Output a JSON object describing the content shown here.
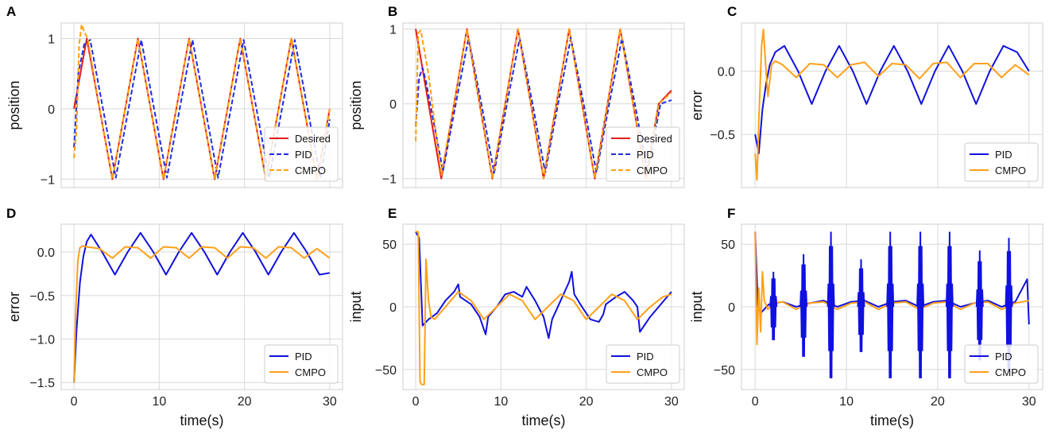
{
  "chart_data": [
    {
      "panel": "A",
      "type": "line",
      "xlabel": "",
      "ylabel": "position",
      "xlim": [
        -1.5,
        31.5
      ],
      "ylim": [
        -1.12,
        1.22
      ],
      "xticks": [
        0,
        10,
        20,
        30
      ],
      "yticks": [
        -1,
        0,
        1
      ],
      "xtick_labels": [],
      "ytick_labels": [
        "−1",
        "0",
        "1"
      ],
      "legend": "lower-right",
      "grid": true,
      "series": [
        {
          "name": "Desired",
          "color": "#e41a1c",
          "style": "solid",
          "x": [
            0,
            1.5,
            3,
            4.5,
            6,
            7.5,
            9,
            10.5,
            12,
            13.5,
            15,
            16.5,
            18,
            19.5,
            21,
            22.5,
            24,
            25.5,
            27,
            28.5,
            30
          ],
          "y": [
            0,
            1,
            0,
            -1,
            0,
            1,
            0,
            -1,
            0,
            1,
            0,
            -1,
            0,
            1,
            0,
            -1,
            0,
            1,
            0,
            -1,
            0
          ]
        },
        {
          "name": "PID",
          "color": "#1f2ee0",
          "style": "dashed",
          "x": [
            0,
            0.5,
            1.2,
            1.9,
            3.4,
            4.9,
            6.4,
            7.9,
            9.4,
            10.9,
            12.4,
            13.9,
            15.4,
            16.9,
            18.4,
            19.9,
            21.4,
            22.9,
            24.4,
            25.9,
            27.4,
            28.9,
            30
          ],
          "y": [
            -0.55,
            0.5,
            0.92,
            0.98,
            0,
            -0.98,
            0,
            0.98,
            0,
            -0.98,
            0,
            0.98,
            0,
            -0.98,
            0,
            0.98,
            0,
            -0.98,
            0,
            0.98,
            0,
            -0.98,
            -0.15
          ]
        },
        {
          "name": "CMPO",
          "color": "#ff9f10",
          "style": "dashed",
          "x": [
            0,
            0.3,
            0.6,
            0.9,
            1.2,
            1.6,
            3,
            4.5,
            6,
            7.5,
            9,
            10.5,
            12,
            13.5,
            15,
            16.5,
            18,
            19.5,
            21,
            22.5,
            24,
            25.5,
            27,
            28.5,
            30
          ],
          "y": [
            -0.7,
            -0.3,
            0.9,
            1.2,
            1.1,
            1.0,
            0,
            -1,
            0,
            1,
            0,
            -1,
            0,
            1,
            0,
            -1,
            0,
            1,
            0,
            -1,
            0,
            1,
            0,
            -1,
            0
          ]
        }
      ]
    },
    {
      "panel": "B",
      "type": "line",
      "xlabel": "",
      "ylabel": "position",
      "xlim": [
        -1.5,
        31.5
      ],
      "ylim": [
        -1.12,
        1.08
      ],
      "xticks": [
        0,
        10,
        20,
        30
      ],
      "yticks": [
        -1,
        0,
        1
      ],
      "xtick_labels": [],
      "ytick_labels": [
        "−1",
        "0",
        "1"
      ],
      "legend": "lower-right",
      "grid": true,
      "series": [
        {
          "name": "Desired",
          "color": "#e41a1c",
          "style": "solid",
          "x": [
            0,
            1.5,
            3,
            4.5,
            6,
            7.5,
            9,
            10.5,
            12,
            13.5,
            15,
            16.5,
            18,
            19.5,
            21,
            22.5,
            24,
            25.5,
            27,
            28.5,
            30
          ],
          "y": [
            1,
            0,
            -1,
            0,
            1,
            0,
            -1,
            0,
            1,
            0,
            -1,
            0,
            1,
            0,
            -1,
            0,
            1,
            0,
            -1,
            0,
            0.18
          ]
        },
        {
          "name": "PID",
          "color": "#1f2ee0",
          "style": "dashed",
          "x": [
            0,
            0.4,
            0.8,
            1.2,
            1.7,
            3.2,
            4.7,
            6.2,
            7.7,
            9.2,
            10.7,
            12.2,
            13.7,
            15.2,
            16.7,
            18.2,
            19.7,
            21.2,
            22.7,
            24.2,
            25.7,
            27.2,
            28.7,
            30
          ],
          "y": [
            -0.3,
            0.35,
            0.48,
            0.3,
            0,
            -0.9,
            0,
            0.88,
            0,
            -0.92,
            0,
            0.88,
            0,
            -0.92,
            0,
            0.88,
            0,
            -0.92,
            0,
            0.88,
            0,
            -0.92,
            0,
            0.05
          ]
        },
        {
          "name": "CMPO",
          "color": "#ff9f10",
          "style": "dashed",
          "x": [
            0,
            0.3,
            0.6,
            1.5,
            3,
            4.5,
            6,
            7.5,
            9,
            10.5,
            12,
            13.5,
            15,
            16.5,
            18,
            19.5,
            21,
            22.5,
            24,
            25.5,
            27,
            28.5,
            30
          ],
          "y": [
            -0.5,
            0.95,
            0.98,
            0.4,
            -0.95,
            0,
            1,
            0,
            -1,
            0,
            1,
            0,
            -1,
            0,
            1,
            0,
            -1,
            0,
            1,
            0,
            -1,
            0,
            0.15
          ]
        }
      ]
    },
    {
      "panel": "C",
      "type": "line",
      "xlabel": "",
      "ylabel": "error",
      "xlim": [
        -1.5,
        31.5
      ],
      "ylim": [
        -0.92,
        0.38
      ],
      "xticks": [
        0,
        10,
        20,
        30
      ],
      "yticks": [
        -0.5,
        0.0
      ],
      "xtick_labels": [],
      "ytick_labels": [
        "−0.5",
        "0.0"
      ],
      "legend": "lower-right",
      "grid": true,
      "series": [
        {
          "name": "PID",
          "color": "#1010e0",
          "style": "solid",
          "x": [
            0,
            0.4,
            0.8,
            1.2,
            1.6,
            2.2,
            3.2,
            4.7,
            6.2,
            7.7,
            9.2,
            10.7,
            12.2,
            13.7,
            15.2,
            16.7,
            18.2,
            19.7,
            21.2,
            22.7,
            24.2,
            25.7,
            27.2,
            28.7,
            30
          ],
          "y": [
            -0.5,
            -0.65,
            -0.3,
            -0.1,
            0.05,
            0.15,
            0.2,
            0,
            -0.26,
            0,
            0.2,
            0,
            -0.26,
            0,
            0.2,
            0,
            -0.26,
            0,
            0.2,
            0,
            -0.26,
            0,
            0.2,
            0.15,
            0
          ]
        },
        {
          "name": "CMPO",
          "color": "#ffa01a",
          "style": "solid",
          "x": [
            0,
            0.2,
            0.4,
            0.7,
            0.9,
            1.1,
            1.4,
            1.8,
            2.2,
            3,
            4.5,
            6,
            7.5,
            9,
            10.5,
            12,
            13.5,
            15,
            16.5,
            18,
            19.5,
            21,
            22.5,
            24,
            25.5,
            27,
            28.5,
            30
          ],
          "y": [
            -0.65,
            -0.86,
            -0.4,
            0.2,
            0.33,
            0.1,
            -0.2,
            0.05,
            0.08,
            0.05,
            -0.05,
            0.06,
            0.05,
            -0.05,
            0.05,
            0.07,
            -0.04,
            0.06,
            0.05,
            -0.06,
            0.06,
            0.07,
            -0.05,
            0.06,
            0.06,
            -0.05,
            0.05,
            -0.03
          ]
        }
      ]
    },
    {
      "panel": "D",
      "type": "line",
      "xlabel": "time(s)",
      "ylabel": "error",
      "xlim": [
        -1.5,
        31.5
      ],
      "ylim": [
        -1.58,
        0.32
      ],
      "xticks": [
        0,
        10,
        20,
        30
      ],
      "yticks": [
        -1.5,
        -1.0,
        -0.5,
        0.0
      ],
      "xtick_labels": [
        "0",
        "10",
        "20",
        "30"
      ],
      "ytick_labels": [
        "−1.5",
        "−1.0",
        "−0.5",
        "0.0"
      ],
      "legend": "lower-right",
      "grid": true,
      "series": [
        {
          "name": "PID",
          "color": "#1010e0",
          "style": "solid",
          "x": [
            0,
            0.3,
            0.7,
            1.1,
            1.5,
            2,
            3.3,
            4.8,
            6.3,
            7.8,
            9.3,
            10.8,
            12.3,
            13.8,
            15.3,
            16.8,
            18.3,
            19.8,
            21.3,
            22.8,
            24.3,
            25.8,
            27.3,
            28.8,
            30
          ],
          "y": [
            -1.5,
            -0.9,
            -0.35,
            -0.05,
            0.12,
            0.2,
            0,
            -0.26,
            0,
            0.22,
            0,
            -0.26,
            0,
            0.22,
            0,
            -0.26,
            0,
            0.22,
            0,
            -0.26,
            0,
            0.22,
            0,
            -0.26,
            -0.24
          ]
        },
        {
          "name": "CMPO",
          "color": "#ffa01a",
          "style": "solid",
          "x": [
            0,
            0.2,
            0.45,
            0.7,
            1,
            1.5,
            3,
            4.5,
            6,
            7.5,
            9,
            10.5,
            12,
            13.5,
            15,
            16.5,
            18,
            19.5,
            21,
            22.5,
            24,
            25.5,
            27,
            28.5,
            30
          ],
          "y": [
            -1.5,
            -0.7,
            -0.1,
            0.05,
            0.07,
            0.06,
            0.04,
            -0.07,
            0.06,
            0.05,
            -0.07,
            0.06,
            0.05,
            -0.07,
            0.06,
            0.05,
            -0.07,
            0.06,
            0.05,
            -0.07,
            0.06,
            0.05,
            -0.07,
            0.04,
            -0.07
          ]
        }
      ]
    },
    {
      "panel": "E",
      "type": "line",
      "xlabel": "time(s)",
      "ylabel": "input",
      "xlim": [
        -1.5,
        31.5
      ],
      "ylim": [
        -66,
        66
      ],
      "xticks": [
        0,
        10,
        20,
        30
      ],
      "yticks": [
        -50,
        0,
        50
      ],
      "xtick_labels": [
        "0",
        "10",
        "20",
        "30"
      ],
      "ytick_labels": [
        "−50",
        "0",
        "50"
      ],
      "legend": "lower-right",
      "grid": true,
      "series": [
        {
          "name": "PID",
          "color": "#1010e0",
          "style": "solid",
          "x": [
            0,
            0.4,
            0.8,
            1.5,
            2.5,
            3.5,
            4.5,
            5,
            5.2,
            6.5,
            7.5,
            8.2,
            8.5,
            9.5,
            10.5,
            11.5,
            12.5,
            13,
            14,
            15,
            15.6,
            16,
            17,
            18,
            18.3,
            18.6,
            19.5,
            20.5,
            21.5,
            22,
            22.3,
            23.5,
            24.5,
            25.5,
            26,
            26.3,
            27.5,
            28.5,
            29.5,
            30
          ],
          "y": [
            60,
            55,
            -15,
            -10,
            -5,
            5,
            12,
            18,
            8,
            2,
            -8,
            -22,
            -8,
            0,
            10,
            12,
            8,
            16,
            5,
            -8,
            -25,
            -10,
            5,
            20,
            28,
            10,
            0,
            -10,
            -12,
            -6,
            2,
            8,
            12,
            5,
            0,
            -20,
            -8,
            0,
            8,
            12
          ]
        },
        {
          "name": "CMPO",
          "color": "#ffa01a",
          "style": "solid",
          "x": [
            0,
            0.3,
            0.5,
            0.7,
            1.0,
            1.2,
            1.5,
            1.8,
            2.2,
            3.5,
            5,
            6.5,
            8,
            9.5,
            11,
            12.5,
            14,
            15.5,
            17,
            18.5,
            20,
            21.5,
            23,
            24.5,
            26,
            27.5,
            29,
            30
          ],
          "y": [
            60,
            60,
            -60,
            -62,
            -62,
            38,
            5,
            -8,
            -10,
            0,
            12,
            5,
            -10,
            0,
            10,
            5,
            -10,
            0,
            10,
            5,
            -10,
            0,
            10,
            5,
            -10,
            0,
            8,
            10
          ]
        }
      ]
    },
    {
      "panel": "F",
      "type": "line",
      "xlabel": "time(s)",
      "ylabel": "input",
      "xlim": [
        -1.5,
        31.5
      ],
      "ylim": [
        -66,
        66
      ],
      "xticks": [
        0,
        10,
        20,
        30
      ],
      "yticks": [
        -50,
        0,
        50
      ],
      "xtick_labels": [
        "0",
        "10",
        "20",
        "30"
      ],
      "ytick_labels": [
        "−50",
        "0",
        "50"
      ],
      "legend": "lower-right",
      "grid": true,
      "bursts": {
        "series": "PID",
        "times": [
          2,
          5.3,
          8.3,
          11.6,
          14.8,
          18.1,
          21.3,
          24.6,
          27.8
        ],
        "amplitudes": [
          28,
          42,
          60,
          38,
          60,
          60,
          60,
          45,
          55
        ]
      },
      "series": [
        {
          "name": "PID",
          "color": "#1010e0",
          "style": "solid",
          "x": [
            0,
            0.3,
            0.6,
            1.5,
            3,
            4.5,
            6,
            7.5,
            9,
            10.5,
            12,
            13.5,
            15,
            16.5,
            18,
            19.5,
            21,
            22.5,
            24,
            25.5,
            27,
            28.5,
            29.8,
            30
          ],
          "y": [
            60,
            0,
            -5,
            2,
            4,
            0,
            3,
            5,
            0,
            4,
            5,
            0,
            4,
            5,
            0,
            4,
            5,
            0,
            3,
            5,
            0,
            4,
            22,
            -14
          ]
        },
        {
          "name": "CMPO",
          "color": "#ffa01a",
          "style": "solid",
          "x": [
            0,
            0.2,
            0.4,
            0.6,
            0.8,
            1.0,
            1.4,
            2,
            3,
            4.5,
            6,
            7.5,
            9,
            10.5,
            12,
            13.5,
            15,
            16.5,
            18,
            19.5,
            21,
            22.5,
            24,
            25.5,
            27,
            28.5,
            30
          ],
          "y": [
            60,
            -30,
            15,
            -20,
            28,
            5,
            -2,
            3,
            4,
            -2,
            3,
            4,
            -2,
            3,
            4,
            -2,
            3,
            4,
            -2,
            3,
            4,
            -2,
            3,
            4,
            -2,
            3,
            5
          ]
        }
      ]
    }
  ]
}
